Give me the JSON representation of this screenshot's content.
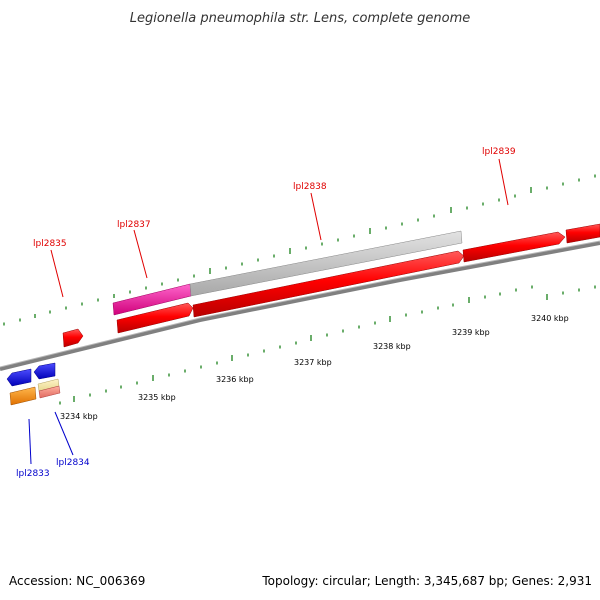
{
  "title": "Legionella pneumophila str. Lens, complete genome",
  "footer": {
    "accession": "Accession: NC_006369",
    "summary": "Topology: circular; Length: 3,345,687 bp; Genes: 2,931"
  },
  "colors": {
    "backbone": "#808080",
    "tick": "#2a8a2a",
    "label_top": "#e00000",
    "label_bottom": "#0000cc"
  },
  "scale_labels": [
    "3234 kbp",
    "3235 kbp",
    "3236 kbp",
    "3237 kbp",
    "3238 kbp",
    "3239 kbp",
    "3240 kbp"
  ],
  "gene_labels_top": [
    "lpl2835",
    "lpl2837",
    "lpl2838",
    "lpl2839"
  ],
  "gene_labels_bottom": [
    "lpl2833",
    "lpl2834"
  ]
}
